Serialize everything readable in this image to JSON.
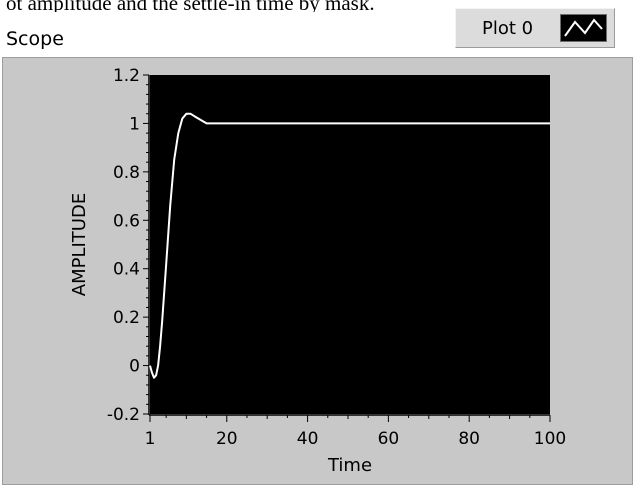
{
  "clipped_text": "ot amplitude and the settle-in time by mask.",
  "panel_label": "Scope",
  "legend": {
    "plot_name": "Plot 0",
    "swatch_icon": "line-plot-icon"
  },
  "colors": {
    "plot_bg": "#000000",
    "trace": "#ffffff",
    "panel_bg": "#c8c8c8"
  },
  "chart_data": {
    "type": "line",
    "xlabel": "Time",
    "ylabel": "AMPLITUDE",
    "xlim": [
      1,
      100
    ],
    "ylim": [
      -0.2,
      1.2
    ],
    "x_ticks": [
      1,
      20,
      40,
      60,
      80,
      100
    ],
    "y_ticks": [
      -0.2,
      0,
      0.2,
      0.4,
      0.6,
      0.8,
      1,
      1.2
    ],
    "y_tick_labels": [
      "-0.2",
      "0",
      "0.2",
      "0.4",
      "0.6",
      "0.8",
      "1",
      "1.2"
    ],
    "grid": false,
    "series": [
      {
        "name": "Plot 0",
        "x": [
          1,
          1.5,
          2,
          2.5,
          3,
          3.5,
          4,
          5,
          6,
          7,
          8,
          9,
          10,
          11,
          12,
          13,
          14,
          15,
          16,
          17,
          18,
          20,
          25,
          30,
          40,
          50,
          60,
          70,
          80,
          90,
          100
        ],
        "y": [
          0,
          -0.03,
          -0.05,
          -0.04,
          0,
          0.08,
          0.18,
          0.42,
          0.66,
          0.85,
          0.96,
          1.02,
          1.04,
          1.04,
          1.03,
          1.02,
          1.01,
          1.0,
          1.0,
          1.0,
          1.0,
          1.0,
          1.0,
          1.0,
          1.0,
          1.0,
          1.0,
          1.0,
          1.0,
          1.0,
          1.0
        ]
      }
    ]
  }
}
